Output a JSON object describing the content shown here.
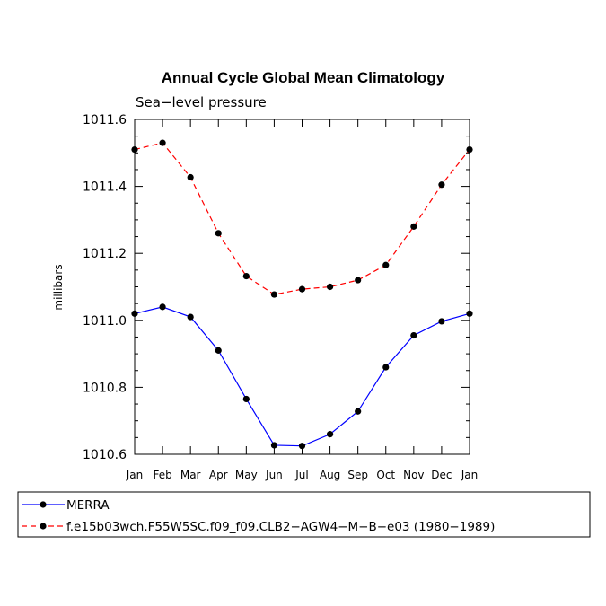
{
  "chart_data": {
    "type": "line",
    "title": "Annual Cycle Global Mean Climatology",
    "subtitle": "Sea−level pressure",
    "xlabel": "",
    "ylabel": "millibars",
    "categories": [
      "Jan",
      "Feb",
      "Mar",
      "Apr",
      "May",
      "Jun",
      "Jul",
      "Aug",
      "Sep",
      "Oct",
      "Nov",
      "Dec",
      "Jan"
    ],
    "ylim": [
      1010.6,
      1011.6
    ],
    "yticks": [
      1010.6,
      1010.8,
      1011.0,
      1011.2,
      1011.4,
      1011.6
    ],
    "ytick_labels": [
      "1010.6",
      "1010.8",
      "1011.0",
      "1011.2",
      "1011.4",
      "1011.6"
    ],
    "series": [
      {
        "name": "MERRA",
        "color": "#0000ff",
        "dash": "solid",
        "values": [
          1011.02,
          1011.04,
          1011.01,
          1010.91,
          1010.765,
          1010.627,
          1010.625,
          1010.66,
          1010.728,
          1010.86,
          1010.955,
          1010.997,
          1011.02
        ]
      },
      {
        "name": "f.e15b03wch.F55W5SC.f09_f09.CLB2−AGW4−M−B−e03 (1980−1989)",
        "color": "#ff0000",
        "dash": "dashed",
        "values": [
          1011.51,
          1011.53,
          1011.427,
          1011.26,
          1011.132,
          1011.077,
          1011.093,
          1011.1,
          1011.12,
          1011.165,
          1011.28,
          1011.405,
          1011.51
        ]
      }
    ],
    "legend": {
      "placement": "bottom"
    }
  }
}
